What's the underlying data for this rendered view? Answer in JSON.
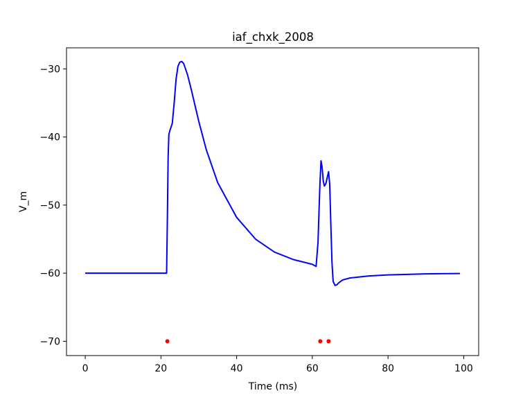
{
  "chart_data": {
    "type": "line",
    "title": "iaf_chxk_2008",
    "xlabel": "Time (ms)",
    "ylabel": "V_m",
    "xlim": [
      -4.95,
      103.95
    ],
    "ylim": [
      -72.1,
      -26.9
    ],
    "xticks": [
      0,
      20,
      40,
      60,
      80,
      100
    ],
    "yticks": [
      -70,
      -60,
      -50,
      -40,
      -30
    ],
    "xtick_labels": [
      "0",
      "20",
      "40",
      "60",
      "80",
      "100"
    ],
    "ytick_labels": [
      "−70",
      "−60",
      "−50",
      "−40",
      "−30"
    ],
    "grid": false,
    "series": [
      {
        "color": "#0000ff",
        "x": [
          0,
          10,
          21.5,
          21.7,
          21.9,
          22.1,
          22.4,
          23,
          23.5,
          24,
          24.5,
          25,
          25.5,
          26,
          27,
          28,
          30,
          32,
          35,
          40,
          45,
          50,
          55,
          60,
          61,
          61.5,
          62,
          62.3,
          62.6,
          62.9,
          63.2,
          63.6,
          64,
          64.3,
          64.6,
          64.9,
          65.2,
          65.5,
          66,
          66.5,
          67,
          68,
          70,
          75,
          80,
          90,
          99
        ],
        "y": [
          -60,
          -60,
          -60,
          -52,
          -43,
          -39.6,
          -39,
          -38,
          -35,
          -31.5,
          -29.6,
          -29.0,
          -28.9,
          -29.2,
          -30.8,
          -33.0,
          -37.7,
          -41.9,
          -46.7,
          -51.8,
          -55.0,
          -56.9,
          -58.0,
          -58.7,
          -59.0,
          -55.5,
          -47,
          -43.5,
          -44.5,
          -46.5,
          -47.2,
          -46.8,
          -45.8,
          -45.1,
          -47,
          -53,
          -58.5,
          -61.2,
          -61.8,
          -61.7,
          -61.4,
          -61.0,
          -60.7,
          -60.4,
          -60.25,
          -60.1,
          -60.05
        ]
      },
      {
        "color": "#ff0000",
        "marker": "dot",
        "x": [
          21.7,
          62.1,
          64.3
        ],
        "y": [
          -70,
          -70,
          -70
        ]
      }
    ]
  }
}
